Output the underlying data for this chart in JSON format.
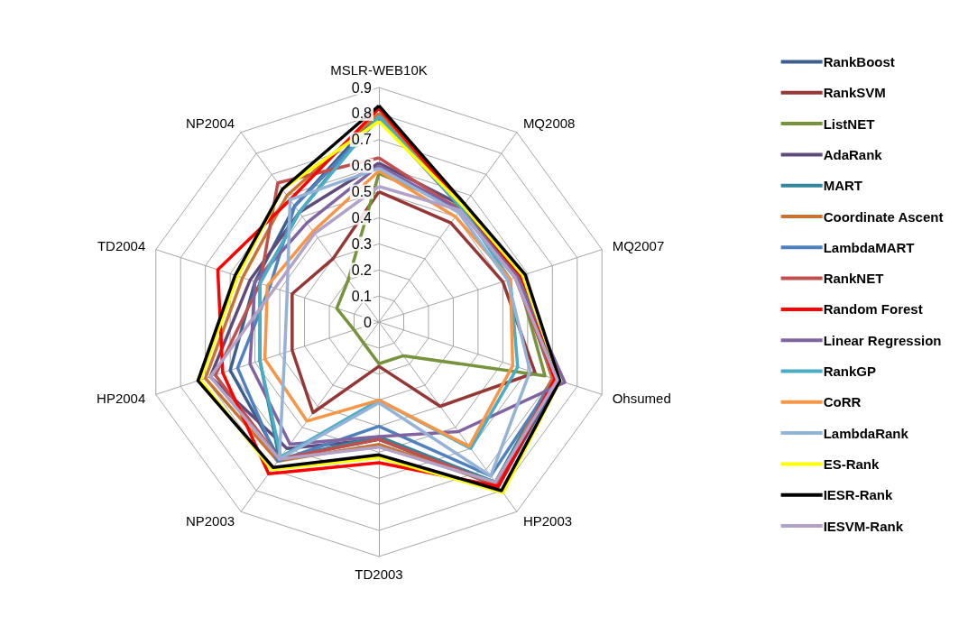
{
  "chart_data": {
    "type": "radar",
    "categories": [
      "MSLR-WEB10K",
      "MQ2008",
      "MQ2007",
      "Ohsumed",
      "HP2003",
      "TD2003",
      "NP2003",
      "HP2004",
      "TD2004",
      "NP2004"
    ],
    "ylim": [
      0,
      0.9
    ],
    "yticks": [
      0,
      0.1,
      0.2,
      0.3,
      0.4,
      0.5,
      0.6,
      0.7,
      0.8,
      0.9
    ],
    "grid": true,
    "legend": "right",
    "marker": "none",
    "line_style": "solid",
    "series": [
      {
        "name": "RankBoost",
        "color": "#3d5f8f",
        "values": [
          0.8,
          0.55,
          0.57,
          0.72,
          0.78,
          0.45,
          0.65,
          0.6,
          0.5,
          0.55
        ]
      },
      {
        "name": "RankSVM",
        "color": "#953735",
        "values": [
          0.5,
          0.47,
          0.5,
          0.63,
          0.4,
          0.17,
          0.43,
          0.35,
          0.35,
          0.3
        ]
      },
      {
        "name": "ListNET",
        "color": "#77933c",
        "values": [
          0.57,
          0.54,
          0.56,
          0.67,
          0.16,
          0.16,
          0.1,
          0.1,
          0.17,
          0.2
        ]
      },
      {
        "name": "AdaRank",
        "color": "#604a7b",
        "values": [
          0.61,
          0.55,
          0.57,
          0.72,
          0.76,
          0.45,
          0.6,
          0.68,
          0.52,
          0.52
        ]
      },
      {
        "name": "MART",
        "color": "#31859c",
        "values": [
          0.8,
          0.54,
          0.56,
          0.7,
          0.76,
          0.44,
          0.65,
          0.48,
          0.48,
          0.52
        ]
      },
      {
        "name": "Coordinate Ascent",
        "color": "#c87533",
        "values": [
          0.8,
          0.55,
          0.57,
          0.7,
          0.77,
          0.47,
          0.66,
          0.7,
          0.55,
          0.6
        ]
      },
      {
        "name": "LambdaMART",
        "color": "#4f81bd",
        "values": [
          0.78,
          0.54,
          0.56,
          0.71,
          0.73,
          0.4,
          0.66,
          0.57,
          0.44,
          0.55
        ]
      },
      {
        "name": "RankNET",
        "color": "#c0504d",
        "values": [
          0.63,
          0.53,
          0.55,
          0.71,
          0.77,
          0.45,
          0.65,
          0.66,
          0.48,
          0.66
        ]
      },
      {
        "name": "Random Forest",
        "color": "#ff0000",
        "values": [
          0.82,
          0.55,
          0.57,
          0.71,
          0.78,
          0.54,
          0.72,
          0.63,
          0.65,
          0.58
        ]
      },
      {
        "name": "Linear Regression",
        "color": "#8064a2",
        "values": [
          0.6,
          0.53,
          0.56,
          0.75,
          0.52,
          0.44,
          0.58,
          0.52,
          0.5,
          0.47
        ]
      },
      {
        "name": "RankGP",
        "color": "#4bacc6",
        "values": [
          0.79,
          0.54,
          0.53,
          0.56,
          0.6,
          0.3,
          0.64,
          0.48,
          0.48,
          0.52
        ]
      },
      {
        "name": "CoRR",
        "color": "#f79646",
        "values": [
          0.58,
          0.5,
          0.53,
          0.54,
          0.59,
          0.3,
          0.47,
          0.46,
          0.45,
          0.43
        ]
      },
      {
        "name": "LambdaRank",
        "color": "#95b3d7",
        "values": [
          0.59,
          0.52,
          0.52,
          0.61,
          0.73,
          0.31,
          0.65,
          0.38,
          0.37,
          0.58
        ]
      },
      {
        "name": "ES-Rank",
        "color": "#ffff00",
        "values": [
          0.77,
          0.55,
          0.58,
          0.73,
          0.81,
          0.52,
          0.7,
          0.72,
          0.57,
          0.63
        ]
      },
      {
        "name": "IESR-Rank",
        "color": "#000000",
        "values": [
          0.83,
          0.56,
          0.59,
          0.73,
          0.8,
          0.51,
          0.69,
          0.73,
          0.58,
          0.63
        ]
      },
      {
        "name": "IESVM-Rank",
        "color": "#b2a2c7",
        "values": [
          0.52,
          0.53,
          0.55,
          0.72,
          0.76,
          0.48,
          0.65,
          0.68,
          0.42,
          0.42
        ]
      }
    ]
  }
}
